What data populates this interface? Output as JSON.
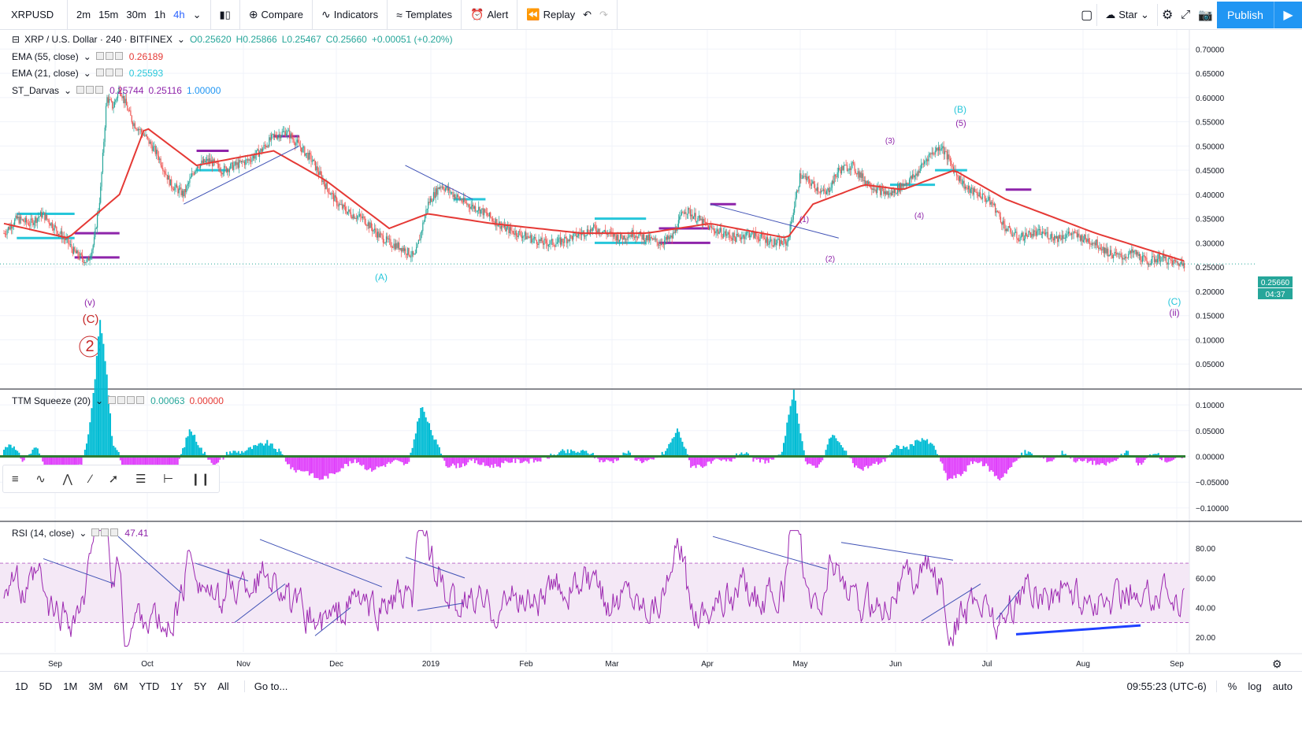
{
  "toolbar": {
    "symbol": "XRPUSD",
    "intervals": [
      "2m",
      "15m",
      "30m",
      "1h",
      "4h"
    ],
    "active_interval": "4h",
    "compare_label": "Compare",
    "indicators_label": "Indicators",
    "templates_label": "Templates",
    "alert_label": "Alert",
    "replay_label": "Replay",
    "star_label": "Star",
    "publish_label": "Publish"
  },
  "legend": {
    "title": "XRP / U.S. Dollar · 240 · BITFINEX",
    "open": "O0.25620",
    "high": "H0.25866",
    "low": "L0.25467",
    "close": "C0.25660",
    "change": "+0.00051 (+0.20%)",
    "ema55_label": "EMA (55, close)",
    "ema55_value": "0.26189",
    "ema21_label": "EMA (21, close)",
    "ema21_value": "0.25593",
    "darvas_label": "ST_Darvas",
    "darvas_v1": "0.25744",
    "darvas_v2": "0.25116",
    "darvas_v3": "1.00000",
    "ttm_label": "TTM Squeeze (20)",
    "ttm_v1": "0.00063",
    "ttm_v2": "0.00000",
    "rsi_label": "RSI (14, close)",
    "rsi_value": "47.41"
  },
  "price_badge": {
    "price": "0.25660",
    "countdown": "04:37"
  },
  "bottom": {
    "ranges": [
      "1D",
      "5D",
      "1M",
      "3M",
      "6M",
      "YTD",
      "1Y",
      "5Y",
      "All"
    ],
    "goto_label": "Go to...",
    "clock": "09:55:23 (UTC-6)",
    "percent_label": "%",
    "log_label": "log",
    "auto_label": "auto"
  },
  "colors": {
    "ema55": "#e53935",
    "ema21": "#26c6da",
    "accent": "#2196f3",
    "rsi": "#9c27b0",
    "up": "#26a69a",
    "down": "#ef5350"
  },
  "chart_data": [
    {
      "type": "line",
      "name": "XRPUSD price (4h)",
      "x_axis_ticks": [
        "Sep",
        "Oct",
        "Nov",
        "Dec",
        "2019",
        "Feb",
        "Mar",
        "Apr",
        "May",
        "Jun",
        "Jul",
        "Aug",
        "Sep"
      ],
      "y_ticks": [
        0.05,
        0.1,
        0.15,
        0.2,
        0.25,
        0.3,
        0.35,
        0.4,
        0.45,
        0.5,
        0.55,
        0.6,
        0.65,
        0.7
      ],
      "ylim": [
        0.0,
        0.72
      ],
      "x": [
        0,
        4,
        8,
        12,
        16,
        20,
        22,
        24,
        26,
        28,
        30,
        32,
        34,
        36,
        40,
        44,
        48,
        52,
        56,
        60,
        64,
        68,
        72,
        76,
        80,
        84,
        88,
        92,
        96,
        100,
        104,
        108,
        112,
        116,
        120,
        124,
        128,
        132,
        136,
        140,
        144,
        148,
        152,
        156,
        160,
        164,
        168,
        172,
        176,
        180,
        184,
        188,
        192,
        196,
        200,
        204,
        208,
        212,
        216,
        220,
        224,
        228,
        232,
        236,
        240,
        244,
        248,
        252,
        256,
        260,
        264,
        268,
        272,
        276,
        280,
        284,
        288,
        292,
        296,
        300,
        304,
        308,
        312,
        316,
        320,
        324,
        328,
        332,
        336,
        340,
        344,
        348,
        352,
        356,
        360,
        364,
        368
      ],
      "values": [
        0.32,
        0.35,
        0.34,
        0.36,
        0.33,
        0.3,
        0.28,
        0.27,
        0.26,
        0.3,
        0.4,
        0.6,
        0.58,
        0.62,
        0.55,
        0.52,
        0.48,
        0.42,
        0.4,
        0.46,
        0.47,
        0.45,
        0.46,
        0.47,
        0.49,
        0.52,
        0.53,
        0.5,
        0.47,
        0.42,
        0.38,
        0.36,
        0.35,
        0.32,
        0.3,
        0.29,
        0.27,
        0.38,
        0.42,
        0.4,
        0.38,
        0.37,
        0.35,
        0.33,
        0.32,
        0.31,
        0.3,
        0.3,
        0.31,
        0.32,
        0.33,
        0.32,
        0.31,
        0.32,
        0.31,
        0.3,
        0.31,
        0.37,
        0.35,
        0.33,
        0.32,
        0.31,
        0.32,
        0.31,
        0.3,
        0.3,
        0.44,
        0.42,
        0.4,
        0.45,
        0.46,
        0.43,
        0.41,
        0.4,
        0.42,
        0.44,
        0.48,
        0.5,
        0.45,
        0.41,
        0.4,
        0.38,
        0.33,
        0.31,
        0.32,
        0.32,
        0.31,
        0.32,
        0.31,
        0.3,
        0.28,
        0.27,
        0.28,
        0.26,
        0.27,
        0.26,
        0.2566
      ]
    },
    {
      "type": "line",
      "name": "EMA (55, close)",
      "x": [
        0,
        20,
        36,
        44,
        60,
        84,
        100,
        120,
        132,
        152,
        180,
        200,
        220,
        244,
        252,
        268,
        280,
        296,
        312,
        340,
        368
      ],
      "values": [
        0.34,
        0.31,
        0.4,
        0.54,
        0.46,
        0.49,
        0.43,
        0.33,
        0.36,
        0.34,
        0.32,
        0.32,
        0.34,
        0.31,
        0.38,
        0.42,
        0.41,
        0.45,
        0.39,
        0.32,
        0.26189
      ]
    },
    {
      "type": "area",
      "name": "TTM Squeeze (20)",
      "y_ticks": [
        -0.1,
        -0.05,
        0.0,
        0.05,
        0.1
      ],
      "ylim": [
        -0.12,
        0.12
      ]
    },
    {
      "type": "line",
      "name": "RSI (14, close)",
      "y_ticks": [
        20,
        40,
        60,
        80
      ],
      "ylim": [
        10,
        95
      ],
      "bands": [
        30,
        70
      ],
      "last": 47.41
    }
  ],
  "wave_labels": [
    "(v)",
    "(C)",
    "2",
    "(A)",
    "(B)",
    "(5)",
    "(C)",
    "(ii)",
    "(3)",
    "(4)",
    "(1)",
    "(2)"
  ]
}
